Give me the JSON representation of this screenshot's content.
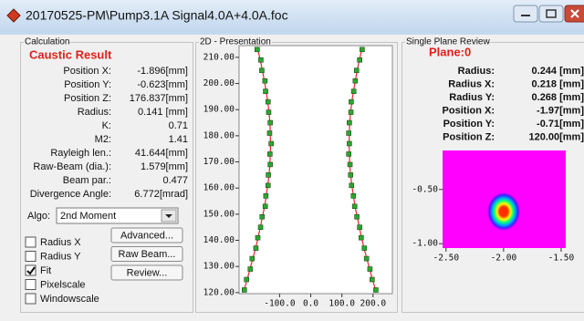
{
  "window": {
    "title": "20170525-PM\\Pump3.1A Signal4.0A+4.0A.foc"
  },
  "calculation": {
    "group_title": "Calculation",
    "heading": "Caustic Result",
    "rows": [
      [
        "Position X:",
        "-1.896[mm]"
      ],
      [
        "Position Y:",
        "-0.623[mm]"
      ],
      [
        "Position Z:",
        "176.837[mm]"
      ],
      [
        "Radius:",
        "0.141 [mm]"
      ],
      [
        "K:",
        "0.71"
      ],
      [
        "M2:",
        "1.41"
      ],
      [
        "Rayleigh len.:",
        "41.644[mm]"
      ],
      [
        "Raw-Beam (dia.):",
        "1.579[mm]"
      ],
      [
        "Beam par.:",
        "0.477"
      ],
      [
        "Divergence Angle:",
        "6.772[mrad]"
      ]
    ],
    "algo_label": "Algo:",
    "algo_value": "2nd Moment",
    "checkboxes": [
      {
        "label": "Radius X",
        "checked": false
      },
      {
        "label": "Radius Y",
        "checked": false
      },
      {
        "label": "Fit",
        "checked": true
      },
      {
        "label": "Pixelscale",
        "checked": false
      },
      {
        "label": "Windowscale",
        "checked": false
      }
    ],
    "buttons": [
      "Advanced...",
      "Raw Beam...",
      "Review..."
    ]
  },
  "presentation": {
    "group_title": "2D - Presentation"
  },
  "review": {
    "group_title": "Single Plane Review",
    "heading": "Plane:0",
    "rows": [
      [
        "Radius:",
        "0.244 [mm]"
      ],
      [
        "Radius X:",
        "0.218 [mm]"
      ],
      [
        "Radius Y:",
        "0.268 [mm]"
      ],
      [
        "Position X:",
        "-1.97[mm]"
      ],
      [
        "Position Y:",
        "-0.71[mm]"
      ],
      [
        "Position Z:",
        "120.00[mm]"
      ]
    ]
  },
  "chart_data": [
    {
      "type": "scatter",
      "xlim": [
        -230,
        262
      ],
      "ylim": [
        119.6,
        214.5
      ],
      "xticks": [
        {
          "value": -100,
          "label": "-100.0"
        },
        {
          "value": 0,
          "label": "0.0"
        },
        {
          "value": 100,
          "label": "100.0"
        },
        {
          "value": 200,
          "label": "200.0"
        }
      ],
      "yticks": [
        {
          "value": 120,
          "label": "120.00"
        },
        {
          "value": 130,
          "label": "130.00"
        },
        {
          "value": 140,
          "label": "140.00"
        },
        {
          "value": 150,
          "label": "150.00"
        },
        {
          "value": 160,
          "label": "160.00"
        },
        {
          "value": 170,
          "label": "170.00"
        },
        {
          "value": 180,
          "label": "180.00"
        },
        {
          "value": 190,
          "label": "190.00"
        },
        {
          "value": 200,
          "label": "200.00"
        },
        {
          "value": 210,
          "label": "210.00"
        }
      ],
      "series": [
        {
          "mode": "line",
          "color": "#e8262a",
          "x": [
            -170,
            -162,
            -155,
            -149,
            -143,
            -138,
            -134,
            -131,
            -130,
            -129,
            -130,
            -131,
            -134,
            -138,
            -143,
            -148,
            -155,
            -162,
            -169,
            -177,
            -186,
            -195,
            -204,
            -214
          ],
          "y": [
            213,
            209,
            205,
            201,
            197,
            193,
            189,
            185,
            181,
            177,
            173,
            169,
            165,
            161,
            157,
            153,
            149,
            145,
            141,
            137,
            133,
            129,
            125,
            121
          ]
        },
        {
          "mode": "line",
          "color": "#e8262a",
          "x": [
            164,
            156,
            149,
            143,
            137,
            132,
            128,
            125,
            124,
            123,
            124,
            125,
            128,
            132,
            137,
            142,
            149,
            156,
            163,
            171,
            180,
            189,
            198,
            208
          ],
          "y": [
            213,
            209,
            205,
            201,
            197,
            193,
            189,
            185,
            181,
            177,
            173,
            169,
            165,
            161,
            157,
            153,
            149,
            145,
            141,
            137,
            133,
            129,
            125,
            121
          ]
        },
        {
          "mode": "markers",
          "color": "#2ea62e",
          "x": [
            -172,
            -160,
            -157,
            -147,
            -145,
            -137,
            -135,
            -130,
            -132,
            -127,
            -131,
            -130,
            -136,
            -137,
            -144,
            -146,
            -156,
            -161,
            -170,
            -176,
            -188,
            -194,
            -206,
            -213
          ],
          "y": [
            213,
            209,
            205,
            201,
            197,
            193,
            189,
            185,
            181,
            177,
            173,
            169,
            165,
            161,
            157,
            153,
            149,
            145,
            141,
            137,
            133,
            129,
            125,
            121
          ]
        },
        {
          "mode": "markers",
          "color": "#2ea62e",
          "x": [
            165,
            157,
            147,
            143,
            138,
            130,
            129,
            124,
            122,
            124,
            122,
            126,
            128,
            131,
            137,
            141,
            148,
            157,
            162,
            172,
            179,
            190,
            197,
            209
          ],
          "y": [
            213,
            209,
            205,
            201,
            197,
            193,
            189,
            185,
            181,
            177,
            173,
            169,
            165,
            161,
            157,
            153,
            149,
            145,
            141,
            137,
            133,
            129,
            125,
            121
          ]
        }
      ]
    },
    {
      "type": "image",
      "xlim": [
        -2.53,
        -1.46
      ],
      "ylim": [
        -1.04,
        -0.14
      ],
      "xticks": [
        {
          "value": -2.5,
          "label": "-2.50"
        },
        {
          "value": -2,
          "label": "-2.00"
        },
        {
          "value": -1.5,
          "label": "-1.50"
        }
      ],
      "yticks": [
        {
          "value": -0.5,
          "label": "-0.50"
        },
        {
          "value": -1,
          "label": "-1.00"
        }
      ]
    }
  ]
}
